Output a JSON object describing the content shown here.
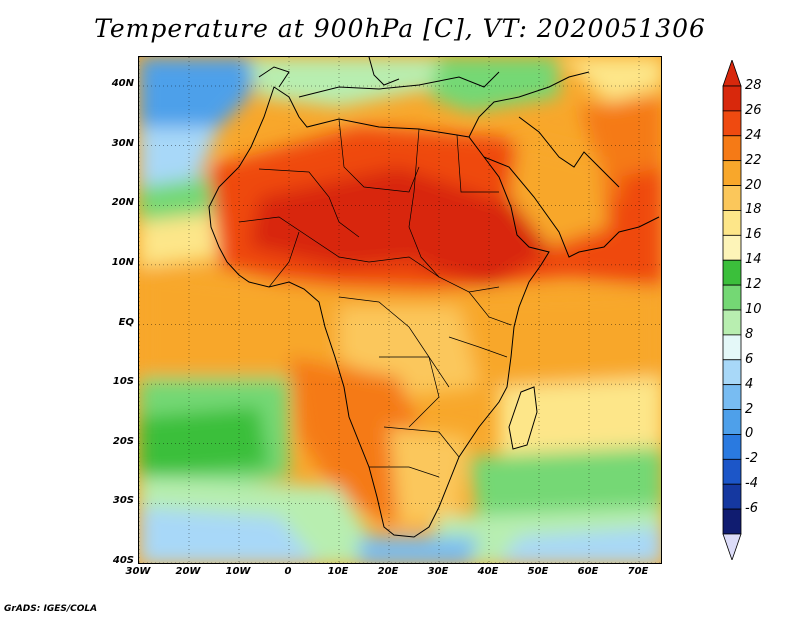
{
  "title": "Temperature at 900hPa [C], VT: 2020051306",
  "credit": "GrADS: IGES/COLA",
  "lat_labels": [
    "40N",
    "30N",
    "20N",
    "10N",
    "EQ",
    "10S",
    "20S",
    "30S",
    "40S"
  ],
  "lon_labels": [
    "30W",
    "20W",
    "10W",
    "0",
    "10E",
    "20E",
    "30E",
    "40E",
    "50E",
    "60E",
    "70E"
  ],
  "colorbar": {
    "labels": [
      "28",
      "26",
      "24",
      "22",
      "20",
      "18",
      "16",
      "14",
      "12",
      "10",
      "8",
      "6",
      "4",
      "2",
      "0",
      "-2",
      "-4",
      "-6"
    ],
    "colors": [
      "#d8280c",
      "#ef4a10",
      "#f57a16",
      "#f8a72b",
      "#fbc75b",
      "#fde689",
      "#fdf4b8",
      "#3bbf3b",
      "#74d874",
      "#b8eeb0",
      "#e4f8f8",
      "#a8d8f8",
      "#78bcf2",
      "#4ea0ea",
      "#2a7ae0",
      "#1c56c8",
      "#1538a0",
      "#101c70"
    ],
    "cap_top": "#d8280c",
    "cap_bottom": "#dcdcf8"
  }
}
